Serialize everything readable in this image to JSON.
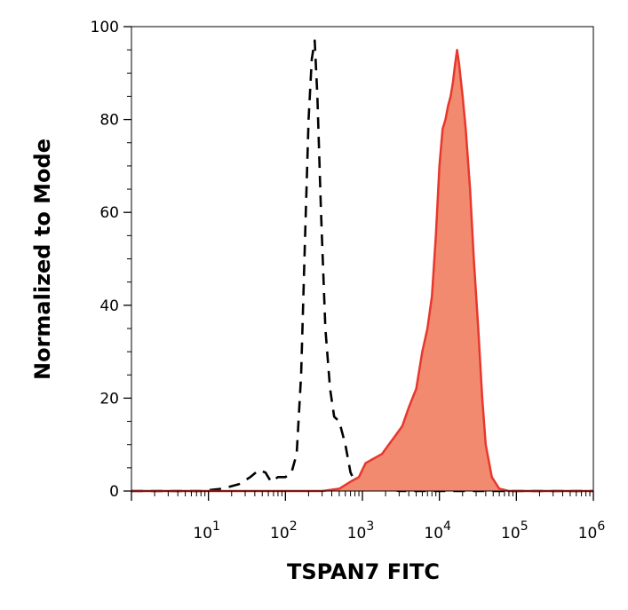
{
  "chart_data": {
    "type": "area",
    "xlabel": "TSPAN7 FITC",
    "ylabel": "Normalized to Mode",
    "x_scale": "log",
    "xlim": [
      1,
      1000000
    ],
    "ylim": [
      0,
      100
    ],
    "x_ticks": [
      {
        "value": 10,
        "base": "10",
        "exp": "1"
      },
      {
        "value": 100,
        "base": "10",
        "exp": "2"
      },
      {
        "value": 1000,
        "base": "10",
        "exp": "3"
      },
      {
        "value": 10000,
        "base": "10",
        "exp": "4"
      },
      {
        "value": 100000,
        "base": "10",
        "exp": "5"
      },
      {
        "value": 1000000,
        "base": "10",
        "exp": "6"
      }
    ],
    "y_ticks": [
      "0",
      "20",
      "40",
      "60",
      "80",
      "100"
    ],
    "grid": false,
    "series": [
      {
        "style": "dashed-line",
        "color": "#000000",
        "points": [
          [
            1,
            0
          ],
          [
            3,
            0
          ],
          [
            8,
            0
          ],
          [
            15,
            0.5
          ],
          [
            25,
            1.5
          ],
          [
            35,
            3
          ],
          [
            45,
            4.5
          ],
          [
            55,
            4
          ],
          [
            65,
            2
          ],
          [
            80,
            3
          ],
          [
            100,
            3
          ],
          [
            120,
            4
          ],
          [
            140,
            8
          ],
          [
            160,
            25
          ],
          [
            180,
            55
          ],
          [
            200,
            80
          ],
          [
            220,
            93
          ],
          [
            240,
            97
          ],
          [
            260,
            85
          ],
          [
            290,
            60
          ],
          [
            330,
            35
          ],
          [
            380,
            22
          ],
          [
            430,
            16
          ],
          [
            500,
            15
          ],
          [
            600,
            10
          ],
          [
            700,
            4
          ],
          [
            800,
            2
          ],
          [
            1000,
            1.5
          ],
          [
            1500,
            1
          ],
          [
            3000,
            0
          ],
          [
            1000000,
            0
          ]
        ]
      },
      {
        "style": "filled",
        "color": "#f28a70",
        "stroke": "#e8372c",
        "points": [
          [
            1,
            0
          ],
          [
            300,
            0
          ],
          [
            500,
            0.5
          ],
          [
            700,
            2
          ],
          [
            900,
            3
          ],
          [
            1100,
            6
          ],
          [
            1400,
            7
          ],
          [
            1800,
            8
          ],
          [
            2200,
            10
          ],
          [
            2700,
            12
          ],
          [
            3300,
            14
          ],
          [
            4000,
            18
          ],
          [
            5000,
            22
          ],
          [
            6000,
            30
          ],
          [
            7000,
            35
          ],
          [
            8000,
            42
          ],
          [
            9000,
            55
          ],
          [
            10000,
            70
          ],
          [
            11000,
            78
          ],
          [
            12000,
            80
          ],
          [
            13000,
            83
          ],
          [
            14000,
            85
          ],
          [
            15000,
            88
          ],
          [
            16000,
            92
          ],
          [
            17000,
            95
          ],
          [
            18000,
            92
          ],
          [
            20000,
            85
          ],
          [
            22000,
            78
          ],
          [
            25000,
            65
          ],
          [
            28000,
            50
          ],
          [
            32000,
            35
          ],
          [
            36000,
            20
          ],
          [
            40000,
            10
          ],
          [
            48000,
            3
          ],
          [
            60000,
            0.5
          ],
          [
            80000,
            0
          ],
          [
            1000000,
            0
          ]
        ]
      }
    ]
  }
}
